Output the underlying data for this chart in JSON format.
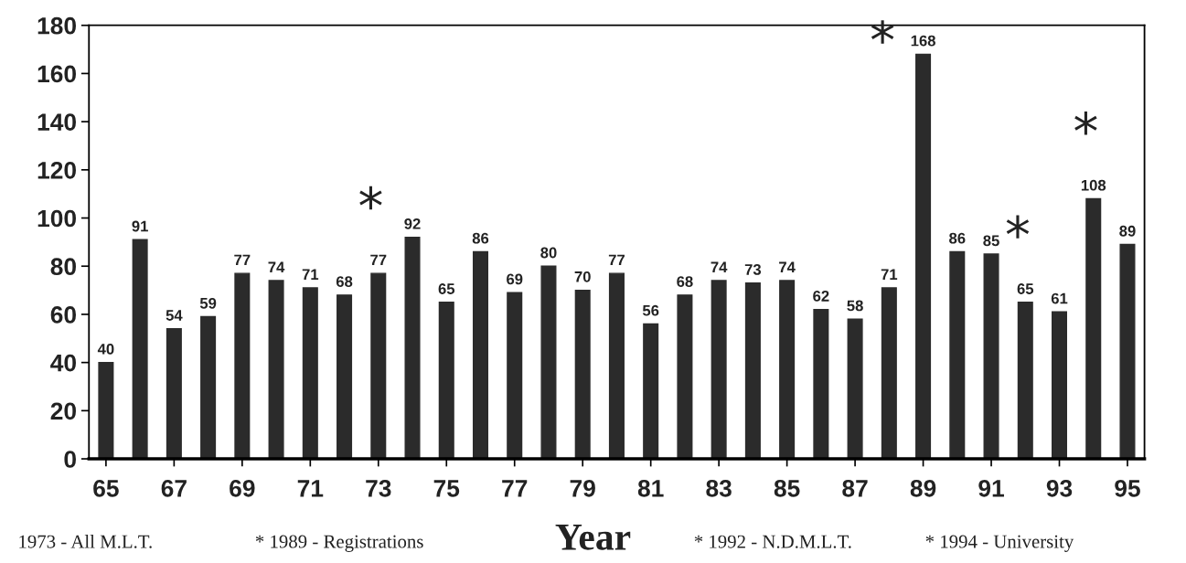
{
  "chart_data": {
    "type": "bar",
    "x": [
      65,
      66,
      67,
      68,
      69,
      70,
      71,
      72,
      73,
      74,
      75,
      76,
      77,
      78,
      79,
      80,
      81,
      82,
      83,
      84,
      85,
      86,
      87,
      88,
      89,
      90,
      91,
      92,
      93,
      94,
      95
    ],
    "values": [
      40,
      91,
      54,
      59,
      77,
      74,
      71,
      68,
      77,
      92,
      65,
      86,
      69,
      80,
      70,
      77,
      56,
      68,
      74,
      73,
      74,
      62,
      58,
      71,
      168,
      86,
      85,
      65,
      61,
      108,
      89
    ],
    "color": "#2b2b2b",
    "data_labels": true,
    "xlabel": "Year",
    "xlim": [
      64.5,
      95.5
    ],
    "xticks": [
      65,
      67,
      69,
      71,
      73,
      75,
      77,
      79,
      81,
      83,
      85,
      87,
      89,
      91,
      93,
      95
    ],
    "ylim": [
      0,
      180
    ],
    "yticks": [
      0,
      20,
      40,
      60,
      80,
      100,
      120,
      140,
      160,
      180
    ],
    "grid": false,
    "legend": false,
    "annotations": [
      {
        "text": "*",
        "x": 73,
        "y": 77
      },
      {
        "text": "*",
        "x": 89,
        "y": 168
      },
      {
        "text": "*",
        "x": 92,
        "y": 65
      },
      {
        "text": "*",
        "x": 94,
        "y": 108
      },
      "1973 - All M.L.T.",
      "* 1989 - Registrations",
      "* 1992 - N.D.M.L.T.",
      "* 1994 - University"
    ]
  }
}
